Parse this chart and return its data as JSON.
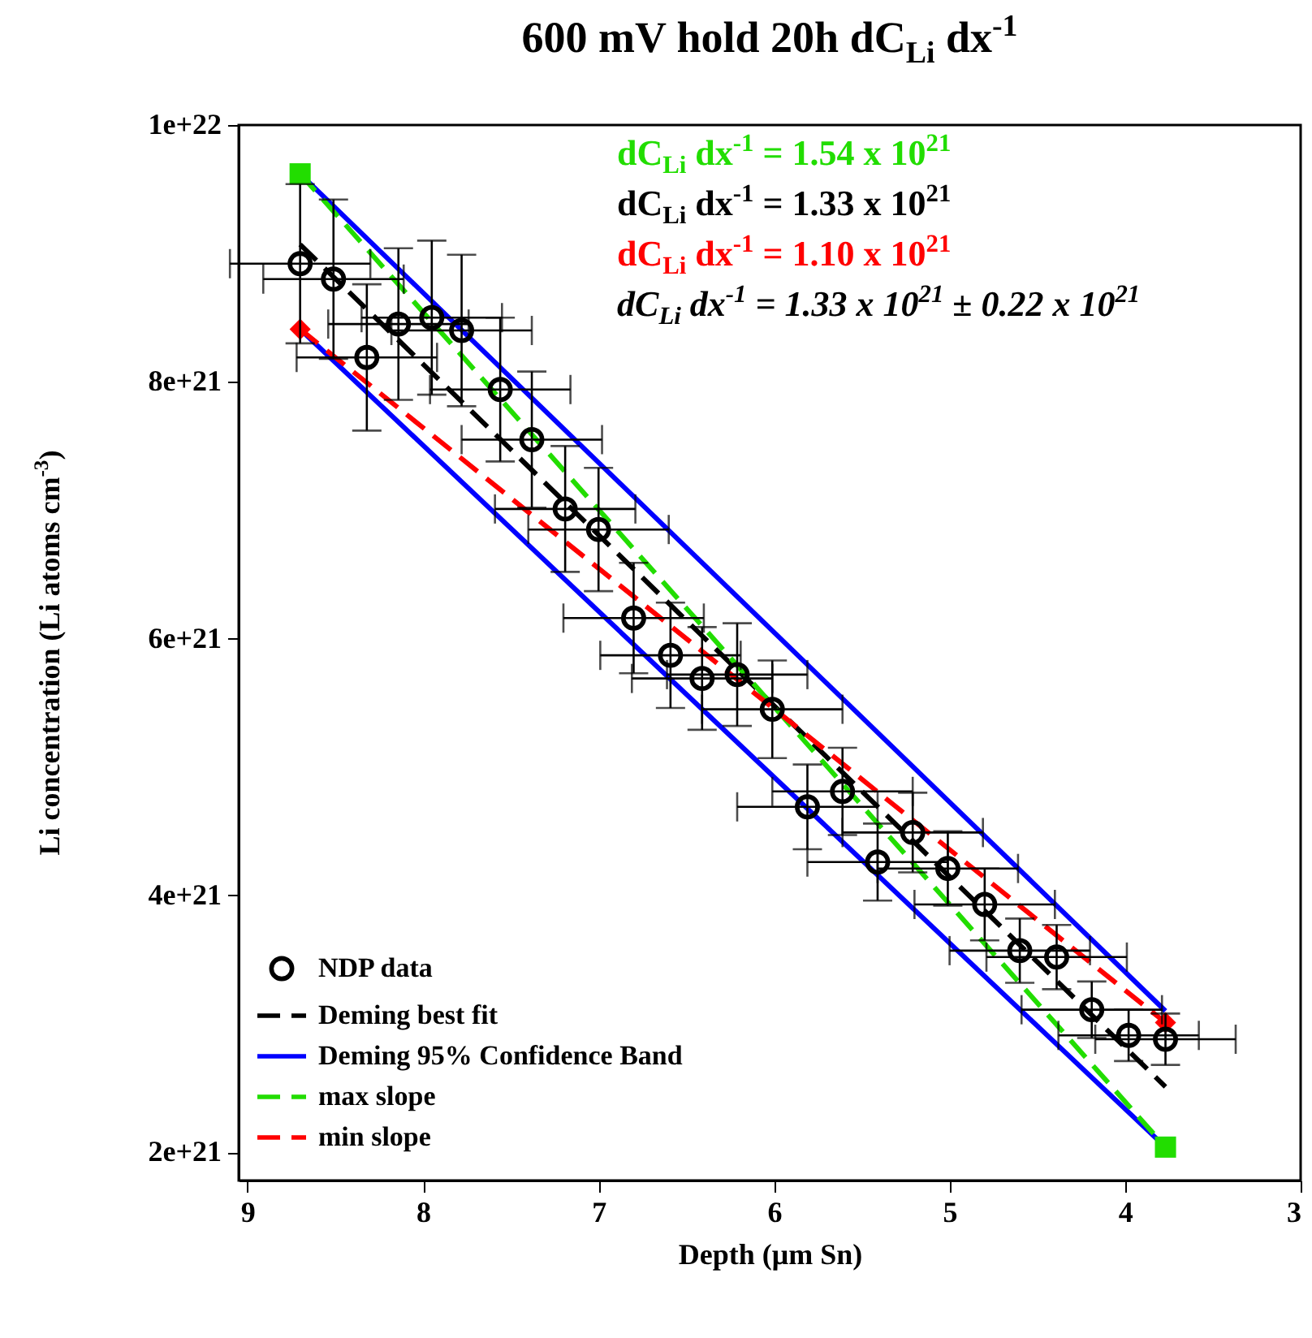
{
  "chart_data": {
    "type": "scatter",
    "title": "600 mV hold 20h dC$_{Li}$ dx$^{-1}$",
    "xlabel": "Depth (μm Sn)",
    "ylabel": "Li concentration (Li atoms cm$^{-3}$)",
    "xlim": [
      9.05,
      3
    ],
    "xticks": [
      9,
      8,
      7,
      6,
      5,
      4,
      3
    ],
    "ylim": [
      1.78e+21,
      1e+22
    ],
    "yticks": [
      {
        "value": 2e+21,
        "label": "2e+21"
      },
      {
        "value": 4e+21,
        "label": "4e+21"
      },
      {
        "value": 6e+21,
        "label": "6e+21"
      },
      {
        "value": 8e+21,
        "label": "8e+21"
      },
      {
        "value": 1e+22,
        "label": "1e+22"
      }
    ],
    "legend": "bottom left",
    "annotations": [
      "dC$_{Li}$ dx$^{-1}$ = 1.54 x 10$^{21}$",
      "dC$_{Li}$ dx$^{-1}$ = 1.33 x 10$^{21}$",
      "dC$_{Li}$ dx$^{-1}$ = 1.10 x 10$^{21}$",
      "dC$_{Li}$ dx$^{-1}$ = 1.33 x 10$^{21}$  ± 0.22 x 10$^{21}$"
    ],
    "series": [
      {
        "name": "NDP data",
        "type": "scatter",
        "marker": "circle",
        "color": "#000000",
        "x": [
          8.7,
          8.51,
          8.32,
          8.14,
          7.95,
          7.78,
          7.56,
          7.38,
          7.19,
          7.0,
          6.8,
          6.59,
          6.41,
          6.21,
          6.01,
          5.81,
          5.61,
          5.41,
          5.21,
          5.01,
          4.8,
          4.6,
          4.39,
          4.19,
          3.98,
          3.77
        ],
        "values": [
          8.92e+21,
          8.8e+21,
          8.19e+21,
          8.45e+21,
          8.5e+21,
          8.4e+21,
          7.94e+21,
          7.55e+21,
          7.01e+21,
          6.85e+21,
          6.16e+21,
          5.87e+21,
          5.69e+21,
          5.72e+21,
          5.45e+21,
          4.69e+21,
          4.81e+21,
          4.26e+21,
          4.49e+21,
          4.21e+21,
          3.93e+21,
          3.57e+21,
          3.52e+21,
          3.11e+21,
          2.91e+21,
          2.88e+21
        ],
        "errors": [
          6.2e+20,
          6.2e+20,
          5.7e+20,
          5.9e+20,
          6e+20,
          5.9e+20,
          5.6e+20,
          5.3e+20,
          4.9e+20,
          4.8e+20,
          4.3e+20,
          4.1e+20,
          4e+20,
          4e+20,
          3.8e+20,
          3.3e+20,
          3.4e+20,
          3e+20,
          3.1e+20,
          2.9e+20,
          2.8e+20,
          2.5e+20,
          2.5e+20,
          2.2e+20,
          2e+20,
          2e+20
        ],
        "xerrors": [
          0.4,
          0.4,
          0.4,
          0.4,
          0.4,
          0.4,
          0.4,
          0.4,
          0.4,
          0.4,
          0.4,
          0.4,
          0.4,
          0.4,
          0.4,
          0.4,
          0.4,
          0.4,
          0.4,
          0.4,
          0.4,
          0.4,
          0.4,
          0.4,
          0.4,
          0.4
        ]
      },
      {
        "name": "Deming best fit",
        "type": "line",
        "line_style": "dashed",
        "color": "#000000",
        "x": [
          8.7,
          3.77
        ],
        "values": [
          9.07e+21,
          2.51e+21
        ]
      },
      {
        "name": "Deming 95% Confidence Band",
        "type": "line",
        "line_style": "solid",
        "color": "#0000ff",
        "x": [
          8.7,
          3.77
        ],
        "values": [
          9.62e+21,
          3.1e+21
        ]
      },
      {
        "type": "line",
        "line_style": "solid",
        "color": "#0000ff",
        "x": [
          8.7,
          3.77
        ],
        "values": [
          8.41e+21,
          2.04e+21
        ]
      },
      {
        "name": "max slope",
        "type": "line",
        "line_style": "dashed",
        "marker": "square",
        "color": "#22dd00",
        "x": [
          8.7,
          3.77
        ],
        "values": [
          9.62e+21,
          2.04e+21
        ]
      },
      {
        "name": "min slope",
        "type": "line",
        "line_style": "dashed",
        "marker": "diamond",
        "color": "#ff0000",
        "x": [
          8.7,
          3.77
        ],
        "values": [
          8.41e+21,
          3.01e+21
        ]
      }
    ]
  }
}
